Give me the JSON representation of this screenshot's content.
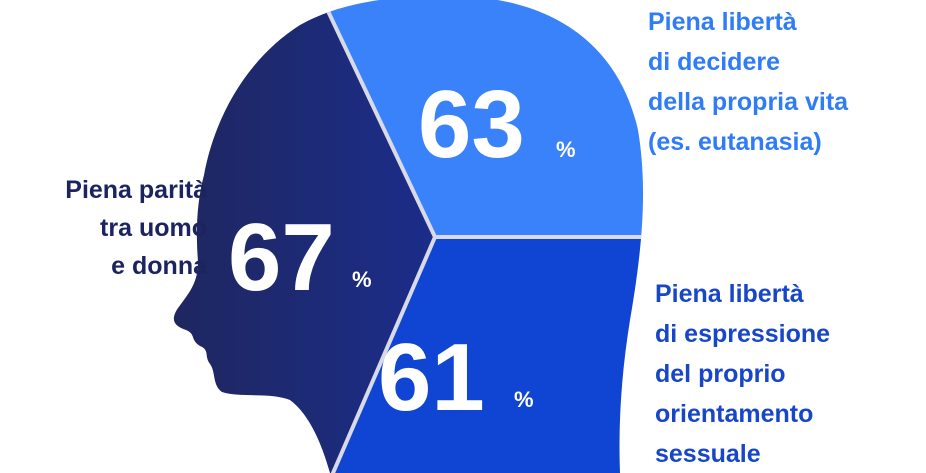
{
  "sections": [
    {
      "label": [
        "Piena parità",
        "tra uomo",
        "e donna"
      ],
      "value": 67,
      "unit": "%"
    },
    {
      "label": [
        "Piena libertà",
        "di decidere",
        "della propria vita",
        "(es. eutanasia)"
      ],
      "value": 63,
      "unit": "%"
    },
    {
      "label": [
        "Piena libertà",
        "di espressione",
        "del proprio",
        "orientamento",
        "sessuale"
      ],
      "value": 61,
      "unit": "%"
    }
  ]
}
